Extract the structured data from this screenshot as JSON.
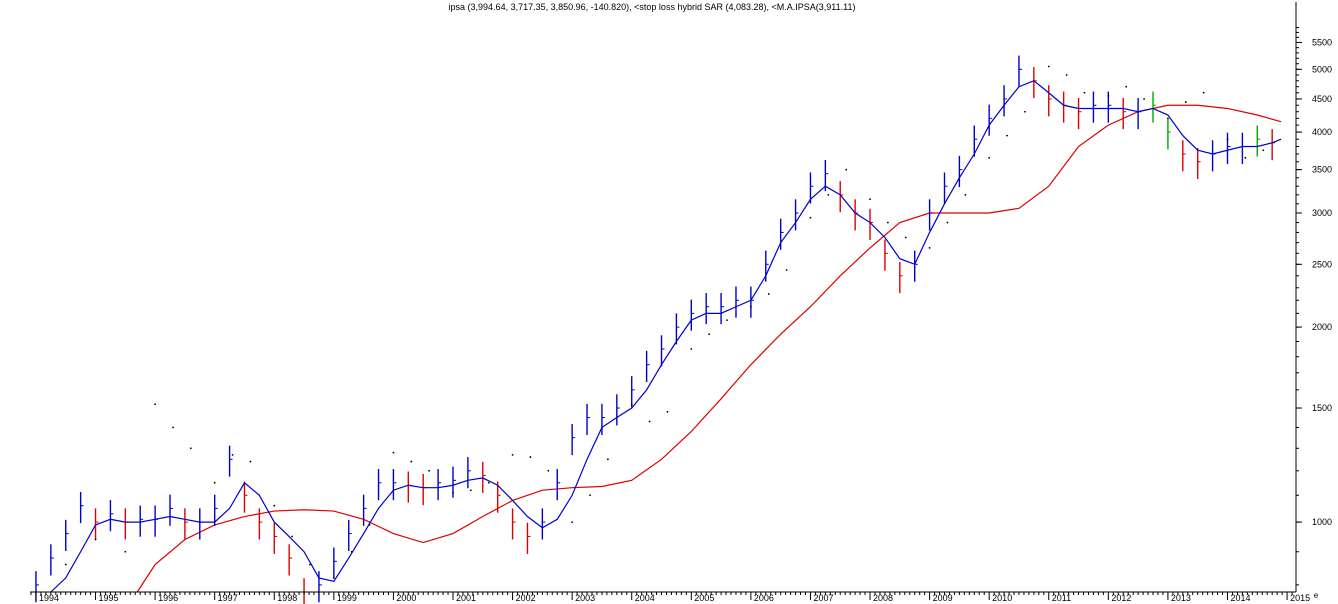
{
  "header": {
    "title": "ipsa (3,994.64, 3,717.35, 3,850.96, -140.820), <stop loss hybrid SAR (4,083.28), <M.A.IPSA(3,911.11)"
  },
  "corner_label": "e",
  "colors": {
    "up": "#0000cc",
    "down": "#dd0000",
    "green": "#00aa00",
    "short_ma": "#0000cc",
    "long_ma": "#dd0000",
    "sar": "#000000",
    "axis": "#000000"
  },
  "chart_data": {
    "type": "line",
    "x_scale": "time (years)",
    "y_scale": "log",
    "ylim": [
      780,
      6000
    ],
    "xlim": [
      1993.9,
      2015.15
    ],
    "y_ticks": [
      1000,
      1500,
      2000,
      2500,
      3000,
      3500,
      4000,
      4500,
      5000,
      5500
    ],
    "x_ticks": [
      "1994",
      "1995",
      "1996",
      "1997",
      "1998",
      "1999",
      "2000",
      "2001",
      "2002",
      "2003",
      "2004",
      "2005",
      "2006",
      "2007",
      "2008",
      "2009",
      "2010",
      "2011",
      "2012",
      "2013",
      "2014",
      "2015"
    ],
    "grid": false,
    "series": [
      {
        "name": "ipsa",
        "style": "price bars",
        "x": [
          1994.0,
          1994.25,
          1994.5,
          1994.75,
          1995.0,
          1995.25,
          1995.5,
          1995.75,
          1996.0,
          1996.25,
          1996.5,
          1996.75,
          1997.0,
          1997.25,
          1997.5,
          1997.75,
          1998.0,
          1998.25,
          1998.5,
          1998.75,
          1999.0,
          1999.25,
          1999.5,
          1999.75,
          2000.0,
          2000.25,
          2000.5,
          2000.75,
          2001.0,
          2001.25,
          2001.5,
          2001.75,
          2002.0,
          2002.25,
          2002.5,
          2002.75,
          2003.0,
          2003.25,
          2003.5,
          2003.75,
          2004.0,
          2004.25,
          2004.5,
          2004.75,
          2005.0,
          2005.25,
          2005.5,
          2005.75,
          2006.0,
          2006.25,
          2006.5,
          2006.75,
          2007.0,
          2007.25,
          2007.5,
          2007.75,
          2008.0,
          2008.25,
          2008.5,
          2008.75,
          2009.0,
          2009.25,
          2009.5,
          2009.75,
          2010.0,
          2010.25,
          2010.5,
          2010.75,
          2011.0,
          2011.25,
          2011.5,
          2011.75,
          2012.0,
          2012.25,
          2012.5,
          2012.75,
          2013.0,
          2013.25,
          2013.5,
          2013.75,
          2014.0,
          2014.25,
          2014.5,
          2014.75
        ],
        "values": [
          800,
          880,
          960,
          1060,
          1000,
          1030,
          1000,
          1010,
          1010,
          1050,
          1000,
          1000,
          1050,
          1250,
          1100,
          1000,
          950,
          880,
          780,
          800,
          870,
          960,
          1050,
          1150,
          1150,
          1140,
          1130,
          1150,
          1160,
          1200,
          1180,
          1100,
          1000,
          950,
          1000,
          1150,
          1350,
          1450,
          1450,
          1500,
          1600,
          1750,
          1850,
          2000,
          2100,
          2150,
          2150,
          2200,
          2200,
          2500,
          2800,
          3000,
          3300,
          3450,
          3200,
          3000,
          2900,
          2600,
          2400,
          2500,
          3000,
          3300,
          3500,
          3900,
          4200,
          4500,
          5000,
          4800,
          4500,
          4400,
          4300,
          4400,
          4400,
          4300,
          4300,
          4400,
          4000,
          3700,
          3600,
          3700,
          3800,
          3800,
          3900,
          3850
        ]
      },
      {
        "name": "M.A.IPSA",
        "style": "long moving average",
        "x": [
          1995.7,
          1996.0,
          1996.5,
          1997.0,
          1997.5,
          1998.0,
          1998.5,
          1999.0,
          1999.5,
          2000.0,
          2000.5,
          2001.0,
          2001.5,
          2002.0,
          2002.5,
          2003.0,
          2003.5,
          2004.0,
          2004.5,
          2005.0,
          2005.5,
          2006.0,
          2006.5,
          2007.0,
          2007.5,
          2008.0,
          2008.5,
          2009.0,
          2009.5,
          2010.0,
          2010.5,
          2011.0,
          2011.5,
          2012.0,
          2012.5,
          2013.0,
          2013.5,
          2014.0,
          2014.5,
          2014.9
        ],
        "values": [
          780,
          860,
          940,
          990,
          1020,
          1040,
          1045,
          1040,
          1010,
          960,
          930,
          960,
          1020,
          1080,
          1120,
          1130,
          1135,
          1160,
          1250,
          1380,
          1550,
          1750,
          1950,
          2150,
          2400,
          2650,
          2900,
          3000,
          3000,
          3000,
          3050,
          3300,
          3800,
          4100,
          4300,
          4400,
          4400,
          4350,
          4250,
          4150
        ]
      },
      {
        "name": "short moving average",
        "style": "line",
        "x": [
          1994.25,
          1994.5,
          1994.75,
          1995.0,
          1995.25,
          1995.5,
          1995.75,
          1996.0,
          1996.25,
          1996.5,
          1996.75,
          1997.0,
          1997.25,
          1997.5,
          1997.75,
          1998.0,
          1998.25,
          1998.5,
          1998.75,
          1999.0,
          1999.25,
          1999.5,
          1999.75,
          2000.0,
          2000.25,
          2000.5,
          2000.75,
          2001.0,
          2001.25,
          2001.5,
          2001.75,
          2002.0,
          2002.25,
          2002.5,
          2002.75,
          2003.0,
          2003.25,
          2003.5,
          2003.75,
          2004.0,
          2004.25,
          2004.5,
          2004.75,
          2005.0,
          2005.25,
          2005.5,
          2005.75,
          2006.0,
          2006.25,
          2006.5,
          2006.75,
          2007.0,
          2007.25,
          2007.5,
          2007.75,
          2008.0,
          2008.25,
          2008.5,
          2008.75,
          2009.0,
          2009.25,
          2009.5,
          2009.75,
          2010.0,
          2010.25,
          2010.5,
          2010.75,
          2011.0,
          2011.25,
          2011.5,
          2011.75,
          2012.0,
          2012.25,
          2012.5,
          2012.75,
          2013.0,
          2013.25,
          2013.5,
          2013.75,
          2014.0,
          2014.25,
          2014.5,
          2014.75,
          2014.9
        ],
        "values": [
          780,
          820,
          900,
          990,
          1010,
          1000,
          1000,
          1010,
          1020,
          1010,
          1000,
          1000,
          1050,
          1150,
          1100,
          1000,
          950,
          900,
          820,
          810,
          880,
          960,
          1050,
          1120,
          1140,
          1130,
          1130,
          1140,
          1160,
          1170,
          1140,
          1080,
          1020,
          980,
          1010,
          1100,
          1250,
          1400,
          1450,
          1500,
          1600,
          1750,
          1900,
          2050,
          2100,
          2100,
          2150,
          2200,
          2400,
          2700,
          2900,
          3150,
          3300,
          3200,
          3000,
          2900,
          2750,
          2550,
          2500,
          2800,
          3100,
          3400,
          3700,
          4100,
          4400,
          4700,
          4800,
          4600,
          4400,
          4350,
          4350,
          4350,
          4350,
          4300,
          4350,
          4250,
          3950,
          3750,
          3700,
          3750,
          3800,
          3800,
          3850,
          3900
        ]
      },
      {
        "name": "stop loss hybrid SAR",
        "style": "dots",
        "x": [
          1994.5,
          1995.0,
          1995.5,
          1996.0,
          1996.3,
          1996.6,
          1997.0,
          1997.3,
          1997.6,
          1998.0,
          1998.3,
          1998.6,
          1999.0,
          1999.3,
          1999.6,
          2000.0,
          2000.3,
          2000.6,
          2001.0,
          2001.3,
          2001.6,
          2002.0,
          2002.3,
          2002.6,
          2003.0,
          2003.3,
          2003.6,
          2004.0,
          2004.3,
          2004.6,
          2005.0,
          2005.3,
          2005.6,
          2006.0,
          2006.3,
          2006.6,
          2007.0,
          2007.3,
          2007.6,
          2008.0,
          2008.3,
          2008.6,
          2009.0,
          2009.3,
          2009.6,
          2010.0,
          2010.3,
          2010.6,
          2011.0,
          2011.3,
          2011.6,
          2012.0,
          2012.3,
          2012.6,
          2013.0,
          2013.3,
          2013.6,
          2014.0,
          2014.3,
          2014.6
        ],
        "values": [
          860,
          940,
          900,
          1520,
          1400,
          1300,
          1150,
          1270,
          1240,
          1060,
          950,
          860,
          820,
          900,
          990,
          1280,
          1240,
          1200,
          1110,
          1120,
          1150,
          1270,
          1260,
          1200,
          1000,
          1100,
          1250,
          1520,
          1430,
          1480,
          1850,
          1950,
          2050,
          2150,
          2250,
          2450,
          2950,
          3200,
          3500,
          3150,
          2900,
          2750,
          2650,
          2900,
          3200,
          3650,
          3950,
          4300,
          5050,
          4900,
          4600,
          4550,
          4700,
          4500,
          4200,
          4450,
          4600,
          3900,
          3650,
          3750
        ]
      }
    ]
  }
}
